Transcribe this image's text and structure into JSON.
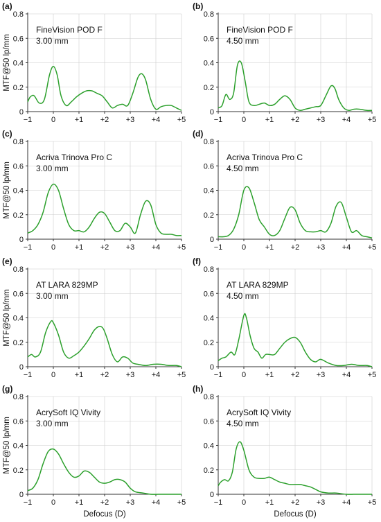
{
  "figure": {
    "colors": {
      "line": "#2ca02c",
      "axis": "#333333",
      "grid": "#cccccc"
    }
  },
  "chart_data": [
    {
      "type": "line",
      "panel_label": "(a)",
      "lens": "FineVision POD F",
      "aperture": "3.00 mm",
      "xlabel": "",
      "ylabel": "MTF@50 lp/mm",
      "xlim": [
        -1,
        5
      ],
      "ylim": [
        0,
        0.8
      ],
      "grid": true,
      "xticks": [
        "−1",
        "0",
        "+1",
        "+2",
        "+3",
        "+4",
        "+5"
      ],
      "yticks": [
        "0",
        "0.2",
        "0.4",
        "0.6",
        "0.8"
      ],
      "x": [
        -1,
        -0.9,
        -0.75,
        -0.55,
        -0.35,
        -0.15,
        0,
        0.15,
        0.3,
        0.5,
        0.7,
        0.9,
        1.1,
        1.3,
        1.5,
        1.7,
        1.9,
        2.1,
        2.3,
        2.5,
        2.7,
        2.9,
        3.1,
        3.3,
        3.45,
        3.6,
        3.8,
        4.0,
        4.2,
        4.4,
        4.6,
        4.8,
        5
      ],
      "values": [
        0.08,
        0.12,
        0.13,
        0.07,
        0.1,
        0.3,
        0.37,
        0.3,
        0.13,
        0.05,
        0.08,
        0.12,
        0.15,
        0.17,
        0.17,
        0.15,
        0.13,
        0.08,
        0.03,
        0.05,
        0.06,
        0.05,
        0.15,
        0.28,
        0.31,
        0.26,
        0.1,
        0.02,
        0.04,
        0.05,
        0.05,
        0.03,
        0.01
      ]
    },
    {
      "type": "line",
      "panel_label": "(b)",
      "lens": "FineVision POD F",
      "aperture": "4.50 mm",
      "xlabel": "",
      "ylabel": "",
      "xlim": [
        -1,
        5
      ],
      "ylim": [
        0,
        0.8
      ],
      "grid": true,
      "xticks": [
        "−1",
        "0",
        "+1",
        "+2",
        "+3",
        "+4",
        "+5"
      ],
      "yticks": [
        "0",
        "0.2",
        "0.4",
        "0.6",
        "0.8"
      ],
      "x": [
        -1,
        -0.85,
        -0.7,
        -0.55,
        -0.4,
        -0.25,
        -0.1,
        0.05,
        0.2,
        0.4,
        0.6,
        0.8,
        1.0,
        1.2,
        1.4,
        1.6,
        1.8,
        2.0,
        2.2,
        2.4,
        2.6,
        2.8,
        3.0,
        3.2,
        3.4,
        3.55,
        3.7,
        3.9,
        4.1,
        4.3,
        4.5,
        4.8,
        5
      ],
      "values": [
        0.03,
        0.05,
        0.14,
        0.1,
        0.15,
        0.38,
        0.4,
        0.25,
        0.08,
        0.05,
        0.06,
        0.07,
        0.05,
        0.06,
        0.1,
        0.13,
        0.1,
        0.03,
        0.01,
        0.02,
        0.03,
        0.04,
        0.05,
        0.13,
        0.21,
        0.19,
        0.1,
        0.03,
        0.01,
        0.02,
        0.02,
        0.01,
        0.01
      ]
    },
    {
      "type": "line",
      "panel_label": "(c)",
      "lens": "Acriva Trinova Pro C",
      "aperture": "3.00 mm",
      "xlabel": "",
      "ylabel": "MTF@50 lp/mm",
      "xlim": [
        -1,
        5
      ],
      "ylim": [
        0,
        0.8
      ],
      "grid": true,
      "xticks": [
        "−1",
        "0",
        "+1",
        "+2",
        "+3",
        "+4",
        "+5"
      ],
      "yticks": [
        "0",
        "0.2",
        "0.4",
        "0.6",
        "0.8"
      ],
      "x": [
        -1,
        -0.8,
        -0.6,
        -0.4,
        -0.2,
        0,
        0.2,
        0.4,
        0.6,
        0.8,
        1.0,
        1.2,
        1.4,
        1.6,
        1.8,
        2.0,
        2.2,
        2.4,
        2.6,
        2.8,
        3.0,
        3.2,
        3.4,
        3.6,
        3.8,
        4.0,
        4.2,
        4.4,
        4.6,
        4.8,
        5
      ],
      "values": [
        0.05,
        0.07,
        0.12,
        0.22,
        0.38,
        0.45,
        0.4,
        0.25,
        0.12,
        0.07,
        0.07,
        0.06,
        0.1,
        0.17,
        0.22,
        0.21,
        0.14,
        0.07,
        0.07,
        0.13,
        0.1,
        0.05,
        0.2,
        0.31,
        0.28,
        0.12,
        0.05,
        0.04,
        0.04,
        0.03,
        0.03
      ]
    },
    {
      "type": "line",
      "panel_label": "(d)",
      "lens": "Acriva Trinova Pro C",
      "aperture": "4.50 mm",
      "xlabel": "",
      "ylabel": "",
      "xlim": [
        -1,
        5
      ],
      "ylim": [
        0,
        0.8
      ],
      "grid": true,
      "xticks": [
        "−1",
        "0",
        "+1",
        "+2",
        "+3",
        "+4",
        "+5"
      ],
      "yticks": [
        "0",
        "0.2",
        "0.4",
        "0.6",
        "0.8"
      ],
      "x": [
        -1,
        -0.8,
        -0.6,
        -0.4,
        -0.2,
        0,
        0.2,
        0.4,
        0.6,
        0.8,
        1.0,
        1.2,
        1.4,
        1.6,
        1.8,
        2.0,
        2.2,
        2.4,
        2.6,
        2.8,
        3.0,
        3.2,
        3.4,
        3.6,
        3.8,
        4.0,
        4.2,
        4.4,
        4.6,
        4.8,
        5
      ],
      "values": [
        0.02,
        0.02,
        0.03,
        0.08,
        0.2,
        0.4,
        0.42,
        0.3,
        0.16,
        0.1,
        0.04,
        0.03,
        0.07,
        0.17,
        0.26,
        0.24,
        0.13,
        0.07,
        0.06,
        0.06,
        0.07,
        0.06,
        0.13,
        0.27,
        0.3,
        0.18,
        0.06,
        0.07,
        0.03,
        0.02,
        0.01
      ]
    },
    {
      "type": "line",
      "panel_label": "(e)",
      "lens": "AT LARA 829MP",
      "aperture": "3.00 mm",
      "xlabel": "",
      "ylabel": "MTF@50 lp/mm",
      "xlim": [
        -1,
        5
      ],
      "ylim": [
        0,
        0.8
      ],
      "grid": true,
      "xticks": [
        "−1",
        "0",
        "+1",
        "+2",
        "+3",
        "+4",
        "+5"
      ],
      "yticks": [
        "0",
        "0.2",
        "0.4",
        "0.6",
        "0.8"
      ],
      "x": [
        -1,
        -0.85,
        -0.7,
        -0.5,
        -0.3,
        -0.1,
        0,
        0.2,
        0.4,
        0.6,
        0.8,
        1.0,
        1.2,
        1.4,
        1.6,
        1.8,
        1.95,
        2.1,
        2.3,
        2.5,
        2.7,
        2.9,
        3.1,
        3.3,
        3.6,
        3.9,
        4.2,
        4.5,
        4.8,
        5
      ],
      "values": [
        0.08,
        0.1,
        0.08,
        0.12,
        0.28,
        0.37,
        0.36,
        0.26,
        0.12,
        0.07,
        0.09,
        0.12,
        0.17,
        0.23,
        0.3,
        0.33,
        0.31,
        0.23,
        0.1,
        0.04,
        0.08,
        0.07,
        0.03,
        0.02,
        0.01,
        0.02,
        0.02,
        0.01,
        0.01,
        0.0
      ]
    },
    {
      "type": "line",
      "panel_label": "(f)",
      "lens": "AT LARA 829MP",
      "aperture": "4.50 mm",
      "xlabel": "",
      "ylabel": "",
      "xlim": [
        -1,
        5
      ],
      "ylim": [
        0,
        0.8
      ],
      "grid": true,
      "xticks": [
        "−1",
        "0",
        "+1",
        "+2",
        "+3",
        "+4",
        "+5"
      ],
      "yticks": [
        "0",
        "0.2",
        "0.4",
        "0.6",
        "0.8"
      ],
      "x": [
        -1,
        -0.85,
        -0.7,
        -0.5,
        -0.35,
        -0.2,
        0,
        0.1,
        0.25,
        0.4,
        0.55,
        0.7,
        0.85,
        1.0,
        1.2,
        1.4,
        1.6,
        1.8,
        2.0,
        2.2,
        2.4,
        2.6,
        2.8,
        3.0,
        3.3,
        3.6,
        3.9,
        4.2,
        4.5,
        4.8,
        5
      ],
      "values": [
        0.05,
        0.07,
        0.08,
        0.12,
        0.1,
        0.22,
        0.42,
        0.4,
        0.25,
        0.15,
        0.12,
        0.07,
        0.1,
        0.1,
        0.1,
        0.15,
        0.2,
        0.23,
        0.24,
        0.2,
        0.12,
        0.06,
        0.04,
        0.06,
        0.03,
        0.01,
        0.01,
        0.02,
        0.01,
        0.01,
        0.0
      ]
    },
    {
      "type": "line",
      "panel_label": "(g)",
      "lens": "AcrySoft IQ Vivity",
      "aperture": "3.00 mm",
      "xlabel": "Defocus (D)",
      "ylabel": "MTF@50 lp/mm",
      "xlim": [
        -1,
        5
      ],
      "ylim": [
        0,
        0.8
      ],
      "grid": true,
      "xticks": [
        "−1",
        "0",
        "+1",
        "+2",
        "+3",
        "+4",
        "+5"
      ],
      "yticks": [
        "0",
        "0.2",
        "0.4",
        "0.6",
        "0.8"
      ],
      "x": [
        -1,
        -0.8,
        -0.6,
        -0.4,
        -0.2,
        0,
        0.2,
        0.4,
        0.6,
        0.8,
        1.0,
        1.2,
        1.4,
        1.6,
        1.8,
        2.0,
        2.2,
        2.4,
        2.6,
        2.8,
        3.0,
        3.2,
        3.5,
        3.8,
        4.1,
        4.4,
        4.7,
        5
      ],
      "values": [
        0.03,
        0.05,
        0.12,
        0.25,
        0.35,
        0.37,
        0.33,
        0.25,
        0.18,
        0.14,
        0.15,
        0.19,
        0.18,
        0.14,
        0.1,
        0.09,
        0.1,
        0.12,
        0.12,
        0.1,
        0.05,
        0.02,
        0.01,
        0.0,
        0.0,
        0.0,
        0.0,
        0.0
      ]
    },
    {
      "type": "line",
      "panel_label": "(h)",
      "lens": "AcrySoft IQ Vivity",
      "aperture": "4.50 mm",
      "xlabel": "Defocus (D)",
      "ylabel": "",
      "xlim": [
        -1,
        5
      ],
      "ylim": [
        0,
        0.8
      ],
      "grid": true,
      "xticks": [
        "−1",
        "0",
        "+1",
        "+2",
        "+3",
        "+4",
        "+5"
      ],
      "yticks": [
        "0",
        "0.2",
        "0.4",
        "0.6",
        "0.8"
      ],
      "x": [
        -1,
        -0.9,
        -0.75,
        -0.6,
        -0.45,
        -0.3,
        -0.15,
        0,
        0.2,
        0.4,
        0.6,
        0.8,
        1.0,
        1.2,
        1.4,
        1.6,
        1.8,
        2.0,
        2.2,
        2.4,
        2.6,
        2.8,
        3.0,
        3.3,
        3.6,
        4.0,
        4.4,
        4.7,
        5
      ],
      "values": [
        0.07,
        0.1,
        0.12,
        0.11,
        0.18,
        0.37,
        0.43,
        0.36,
        0.2,
        0.14,
        0.13,
        0.13,
        0.14,
        0.12,
        0.1,
        0.09,
        0.08,
        0.08,
        0.08,
        0.07,
        0.06,
        0.04,
        0.02,
        0.01,
        0.01,
        0.0,
        0.0,
        0.0,
        0.0
      ]
    }
  ]
}
